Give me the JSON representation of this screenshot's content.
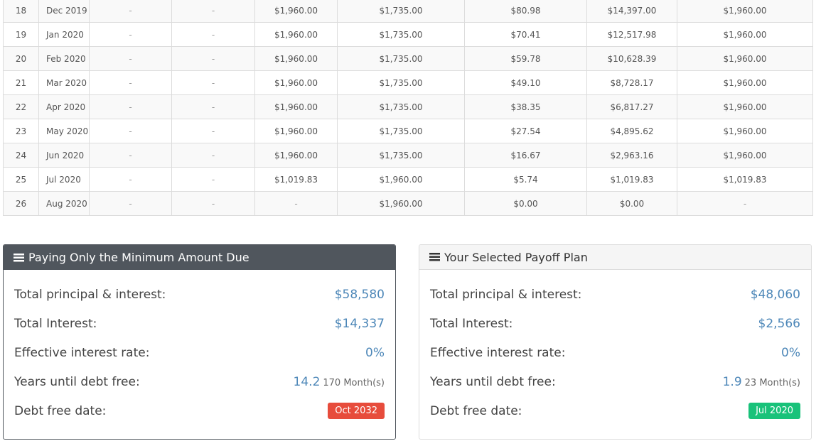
{
  "schedule": {
    "rows": [
      [
        "18",
        "Dec 2019",
        "-",
        "-",
        "$1,960.00",
        "$1,735.00",
        "$80.98",
        "$14,397.00",
        "$1,960.00"
      ],
      [
        "19",
        "Jan 2020",
        "-",
        "-",
        "$1,960.00",
        "$1,735.00",
        "$70.41",
        "$12,517.98",
        "$1,960.00"
      ],
      [
        "20",
        "Feb 2020",
        "-",
        "-",
        "$1,960.00",
        "$1,735.00",
        "$59.78",
        "$10,628.39",
        "$1,960.00"
      ],
      [
        "21",
        "Mar 2020",
        "-",
        "-",
        "$1,960.00",
        "$1,735.00",
        "$49.10",
        "$8,728.17",
        "$1,960.00"
      ],
      [
        "22",
        "Apr 2020",
        "-",
        "-",
        "$1,960.00",
        "$1,735.00",
        "$38.35",
        "$6,817.27",
        "$1,960.00"
      ],
      [
        "23",
        "May 2020",
        "-",
        "-",
        "$1,960.00",
        "$1,735.00",
        "$27.54",
        "$4,895.62",
        "$1,960.00"
      ],
      [
        "24",
        "Jun 2020",
        "-",
        "-",
        "$1,960.00",
        "$1,735.00",
        "$16.67",
        "$2,963.16",
        "$1,960.00"
      ],
      [
        "25",
        "Jul 2020",
        "-",
        "-",
        "$1,019.83",
        "$1,960.00",
        "$5.74",
        "$1,019.83",
        "$1,019.83"
      ],
      [
        "26",
        "Aug 2020",
        "-",
        "-",
        "-",
        "$1,960.00",
        "$0.00",
        "$0.00",
        "-"
      ]
    ]
  },
  "minimum_panel": {
    "title": "Paying Only the Minimum Amount Due",
    "icon": "list-icon",
    "total_pi_label": "Total principal & interest:",
    "total_pi_value": "$58,580",
    "total_interest_label": "Total Interest:",
    "total_interest_value": "$14,337",
    "rate_label": "Effective interest rate:",
    "rate_value": "0%",
    "years_label": "Years until debt free:",
    "years_value": "14.2",
    "months_value": "170 Month(s)",
    "date_label": "Debt free date:",
    "date_value": "Oct 2032",
    "date_color": "#e74c3c"
  },
  "selected_panel": {
    "title": "Your Selected Payoff Plan",
    "icon": "list-icon",
    "total_pi_label": "Total principal & interest:",
    "total_pi_value": "$48,060",
    "total_interest_label": "Total Interest:",
    "total_interest_value": "$2,566",
    "rate_label": "Effective interest rate:",
    "rate_value": "0%",
    "years_label": "Years until debt free:",
    "years_value": "1.9",
    "months_value": "23 Month(s)",
    "date_label": "Debt free date:",
    "date_value": "Jul 2020",
    "date_color": "#19c27a"
  },
  "colors": {
    "link_value": "#4d87b8",
    "dark_header": "#50565d"
  }
}
